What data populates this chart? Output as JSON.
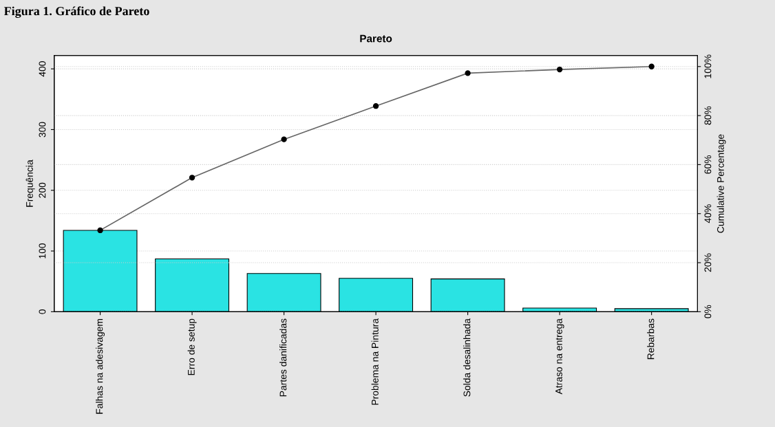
{
  "chart_data": {
    "type": "bar",
    "title": "Pareto",
    "ylabel": "Frequência",
    "y2label": "Cumulative Percentage",
    "annotations": [
      "Figura 1. Gráfico de Pareto"
    ],
    "categories": [
      "Falhas na adesivagem",
      "Erro de setup",
      "Partes danificadas",
      "Problema na Pintura",
      "Solda desalinhada",
      "Atraso na entrega",
      "Rebarbas"
    ],
    "series": [
      {
        "color": "#2ae3e3",
        "values": [
          134,
          87,
          63,
          55,
          54,
          6,
          5
        ]
      },
      {
        "type": "line",
        "axis": "y2",
        "color": "#666666",
        "marker": "circle",
        "values": [
          33.2,
          54.7,
          70.3,
          83.9,
          97.3,
          98.8,
          100
        ]
      }
    ],
    "ylim": [
      0,
      422
    ],
    "yticks": [
      0,
      100,
      200,
      300,
      400
    ],
    "y2lim": [
      0,
      104.5
    ],
    "y2ticks": [
      {
        "value": 0,
        "label": "0%"
      },
      {
        "value": 20,
        "label": "20%"
      },
      {
        "value": 40,
        "label": "40%"
      },
      {
        "value": 60,
        "label": "60%"
      },
      {
        "value": 80,
        "label": "80%"
      },
      {
        "value": 100,
        "label": "100%"
      }
    ],
    "grid": "y"
  }
}
